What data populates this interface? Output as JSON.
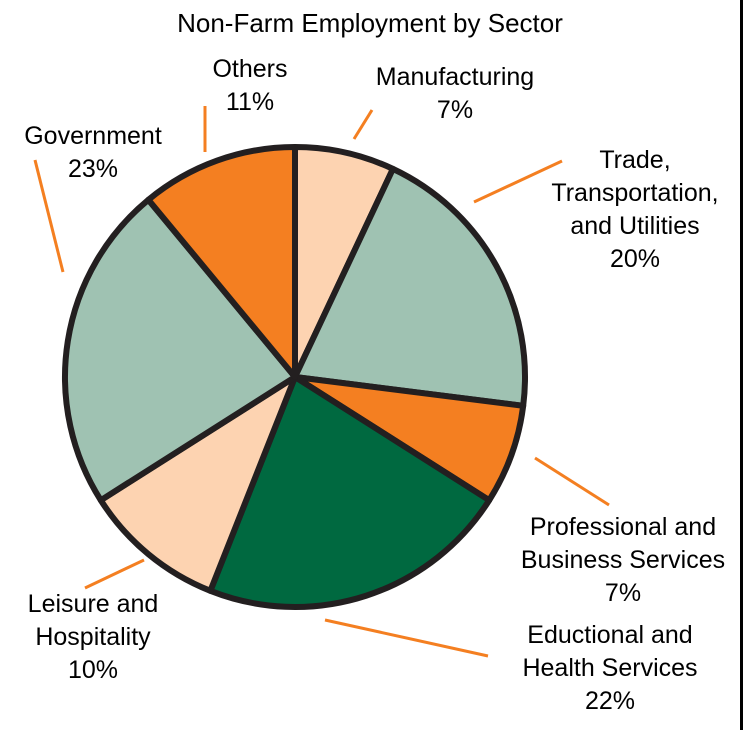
{
  "chart_data": {
    "type": "pie",
    "title": "Non-Farm Employment by Sector",
    "start_angle_deg": 0,
    "direction": "clockwise",
    "slices": [
      {
        "label_lines": [
          "Manufacturing"
        ],
        "value_label": "7%",
        "value": 7,
        "color": "#fdd3b1"
      },
      {
        "label_lines": [
          "Trade,",
          "Transportation,",
          "and Utilities"
        ],
        "value_label": "20%",
        "value": 20,
        "color": "#9fc2b2"
      },
      {
        "label_lines": [
          "Professional and",
          "Business Services"
        ],
        "value_label": "7%",
        "value": 7,
        "color": "#f47f21"
      },
      {
        "label_lines": [
          "Eductional and",
          "Health Services"
        ],
        "value_label": "22%",
        "value": 22,
        "color": "#006940"
      },
      {
        "label_lines": [
          "Leisure and",
          "Hospitality"
        ],
        "value_label": "10%",
        "value": 10,
        "color": "#fdd3b1"
      },
      {
        "label_lines": [
          "Government"
        ],
        "value_label": "23%",
        "value": 23,
        "color": "#9fc2b2"
      },
      {
        "label_lines": [
          "Others"
        ],
        "value_label": "11%",
        "value": 11,
        "color": "#f47f21"
      }
    ],
    "legend": "none",
    "leader_line_color": "#f47f21",
    "outline_color": "#231f20"
  }
}
